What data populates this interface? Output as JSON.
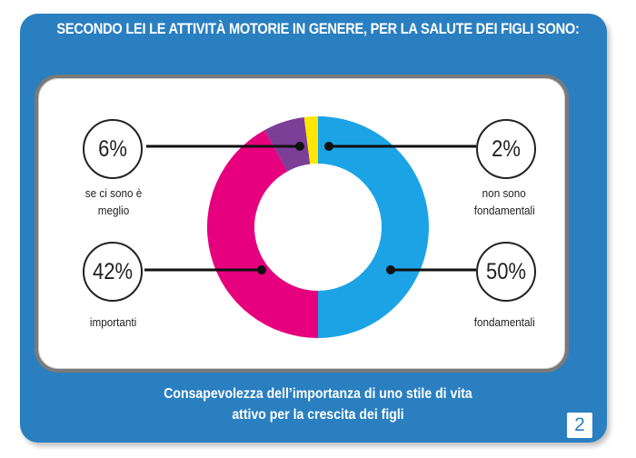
{
  "header": {
    "title": "SECONDO LEI  LE ATTIVITÀ MOTORIE IN GENERE, PER LA SALUTE DEI FIGLI SONO:"
  },
  "colors": {
    "background": "#2a7fc0",
    "slice_fondamentali": "#1ba3e6",
    "slice_importanti": "#e6007e",
    "slice_meglio": "#7b3f98",
    "slice_non_fondamentali": "#ffe600"
  },
  "chart_data": {
    "type": "donut",
    "title": "",
    "series": [
      {
        "label": "fondamentali",
        "value": 50,
        "display": "50%",
        "color": "#1ba3e6"
      },
      {
        "label": "importanti",
        "value": 42,
        "display": "42%",
        "color": "#e6007e"
      },
      {
        "label": "se ci sono è meglio",
        "value": 6,
        "display": "6%",
        "color": "#7b3f98"
      },
      {
        "label": "non sono fondamentali",
        "value": 2,
        "display": "2%",
        "color": "#ffe600"
      }
    ],
    "labels": {
      "top_left_value": "6%",
      "top_left_label": "se ci sono è meglio",
      "top_right_value": "2%",
      "top_right_label_1": "non sono",
      "top_right_label_2": "fondamentali",
      "bottom_left_value": "42%",
      "bottom_left_label": "importanti",
      "bottom_right_value": "50%",
      "bottom_right_label": "fondamentali"
    }
  },
  "footer": {
    "line1": "Consapevolezza dell’importanza di uno stile di vita",
    "line2": "attivo per la crescita dei  figli"
  },
  "page_number": "2"
}
